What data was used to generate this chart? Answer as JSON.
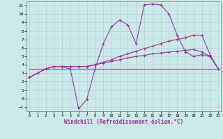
{
  "xlabel": "Windchill (Refroidissement éolien,°C)",
  "background_color": "#cce9ea",
  "line_color": "#993399",
  "xlim_min": 0,
  "xlim_max": 23,
  "ylim_min": -1.5,
  "ylim_max": 11.5,
  "yticks": [
    -1,
    0,
    1,
    2,
    3,
    4,
    5,
    6,
    7,
    8,
    9,
    10,
    11
  ],
  "xticks": [
    0,
    1,
    2,
    3,
    4,
    5,
    6,
    7,
    8,
    9,
    10,
    11,
    12,
    13,
    14,
    15,
    16,
    17,
    18,
    19,
    20,
    21,
    22,
    23
  ],
  "line1_x": [
    0,
    1,
    2,
    3,
    4,
    5,
    6,
    7,
    8,
    9,
    10,
    11,
    12,
    13,
    14,
    15,
    16,
    17,
    18,
    19,
    20,
    21,
    22,
    23
  ],
  "line1_y": [
    2.5,
    3.0,
    3.5,
    3.8,
    3.8,
    3.5,
    -1.2,
    -0.1,
    3.5,
    6.5,
    8.5,
    9.3,
    8.7,
    6.5,
    11.1,
    11.2,
    11.1,
    10.0,
    7.5,
    5.5,
    5.0,
    5.2,
    5.0,
    3.5
  ],
  "line2_x": [
    0,
    2,
    3,
    4,
    5,
    6,
    7,
    8,
    9,
    10,
    11,
    12,
    13,
    14,
    15,
    16,
    17,
    18,
    19,
    20,
    21,
    22,
    23
  ],
  "line2_y": [
    2.5,
    3.5,
    3.8,
    3.8,
    3.8,
    3.8,
    3.8,
    4.0,
    4.3,
    4.6,
    5.0,
    5.3,
    5.6,
    5.9,
    6.2,
    6.5,
    6.8,
    7.0,
    7.2,
    7.5,
    7.5,
    5.2,
    3.5
  ],
  "line3_x": [
    0,
    23
  ],
  "line3_y": [
    3.5,
    3.5
  ],
  "line4_x": [
    0,
    2,
    3,
    4,
    5,
    6,
    7,
    8,
    9,
    10,
    11,
    12,
    13,
    14,
    15,
    16,
    17,
    18,
    19,
    20,
    21,
    22,
    23
  ],
  "line4_y": [
    2.5,
    3.5,
    3.8,
    3.8,
    3.8,
    3.8,
    3.8,
    4.0,
    4.2,
    4.4,
    4.6,
    4.8,
    5.0,
    5.1,
    5.3,
    5.4,
    5.5,
    5.6,
    5.7,
    5.8,
    5.5,
    5.0,
    3.5
  ],
  "grid_color": "#aacccc",
  "tick_fontsize": 5,
  "xlabel_fontsize": 5.5
}
